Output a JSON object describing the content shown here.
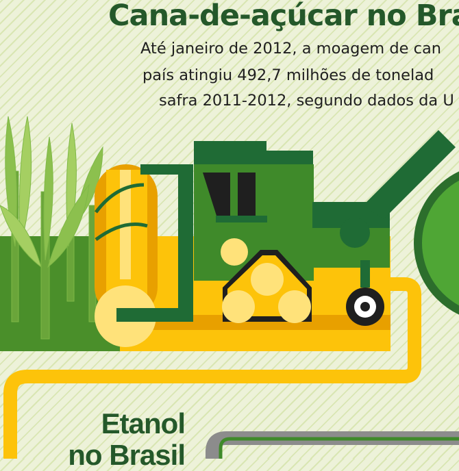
{
  "header": {
    "title": "Cana-de-açúcar no Bra",
    "subtitle_lines": [
      "Até janeiro de 2012, a moagem de can",
      "país atingiu 492,7 milhões de tonelad",
      "safra 2011-2012, segundo dados da U"
    ]
  },
  "section": {
    "title_lines": [
      "Etanol",
      "no Brasil"
    ]
  },
  "illustration": {
    "icons": [
      "sugarcane-plants-icon",
      "harvester-icon",
      "conveyor-path-icon",
      "railway-icon"
    ],
    "colors": {
      "dark_green": "#24582a",
      "green": "#3f8a2a",
      "yellow": "#fdc30a",
      "orange": "#e8a000",
      "background": "#edf2d9"
    }
  }
}
